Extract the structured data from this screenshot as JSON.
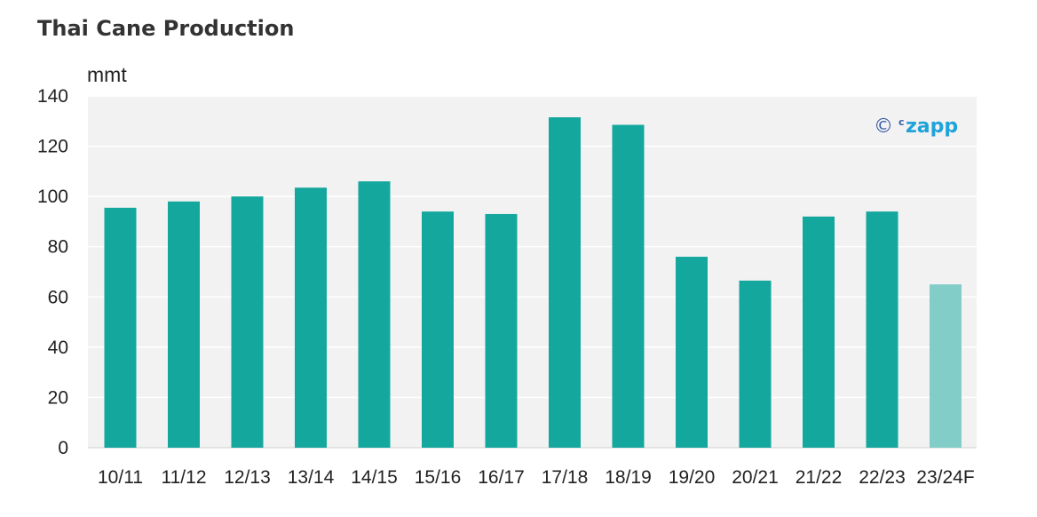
{
  "title": "Thai Cane Production",
  "watermark": {
    "symbol": "©",
    "brand_small": "c",
    "brand": "zapp"
  },
  "chart_data": {
    "type": "bar",
    "title": "Thai Cane Production",
    "ylabel": "mmt",
    "xlabel": "",
    "ylim": [
      0,
      140
    ],
    "yticks": [
      0,
      20,
      40,
      60,
      80,
      100,
      120,
      140
    ],
    "grid": true,
    "categories": [
      "10/11",
      "11/12",
      "12/13",
      "13/14",
      "14/15",
      "15/16",
      "16/17",
      "17/18",
      "18/19",
      "19/20",
      "20/21",
      "21/22",
      "22/23",
      "23/24F"
    ],
    "values": [
      95.5,
      98,
      100,
      103.5,
      106,
      94,
      93,
      131.5,
      128.5,
      76,
      66.5,
      92,
      94,
      65
    ],
    "colors": {
      "bar": "#14a79d",
      "forecast_bar": "#82cdc7",
      "plot_bg": "#f2f2f2",
      "grid": "#ffffff"
    },
    "forecast_categories": [
      "23/24F"
    ]
  }
}
